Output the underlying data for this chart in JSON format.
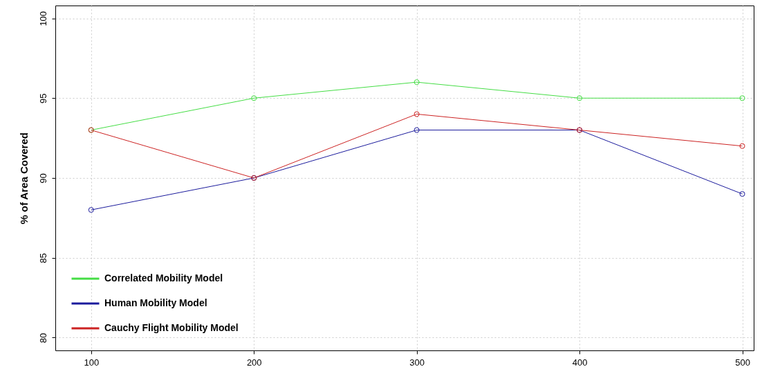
{
  "chart_data": {
    "type": "line",
    "ylabel": "% of Area Covered",
    "x": [
      100,
      200,
      300,
      400,
      500
    ],
    "xlim": [
      78,
      507
    ],
    "xticks": [
      100,
      200,
      300,
      400,
      500
    ],
    "ylim": [
      79.2,
      100.8
    ],
    "yticks": [
      80,
      85,
      90,
      95,
      100
    ],
    "grid": true,
    "legend": "bottom left",
    "marker": "circle",
    "line_style": "solid",
    "series": [
      {
        "name": "Correlated Mobility Model",
        "color": "#44dd44",
        "values": [
          93,
          95,
          96,
          95,
          95
        ]
      },
      {
        "name": "Human Mobility Model",
        "color": "#1a1a9c",
        "values": [
          88,
          90,
          93,
          93,
          89
        ]
      },
      {
        "name": "Cauchy Flight Mobility Model",
        "color": "#cc2222",
        "values": [
          93,
          90,
          94,
          93,
          92
        ]
      }
    ]
  }
}
